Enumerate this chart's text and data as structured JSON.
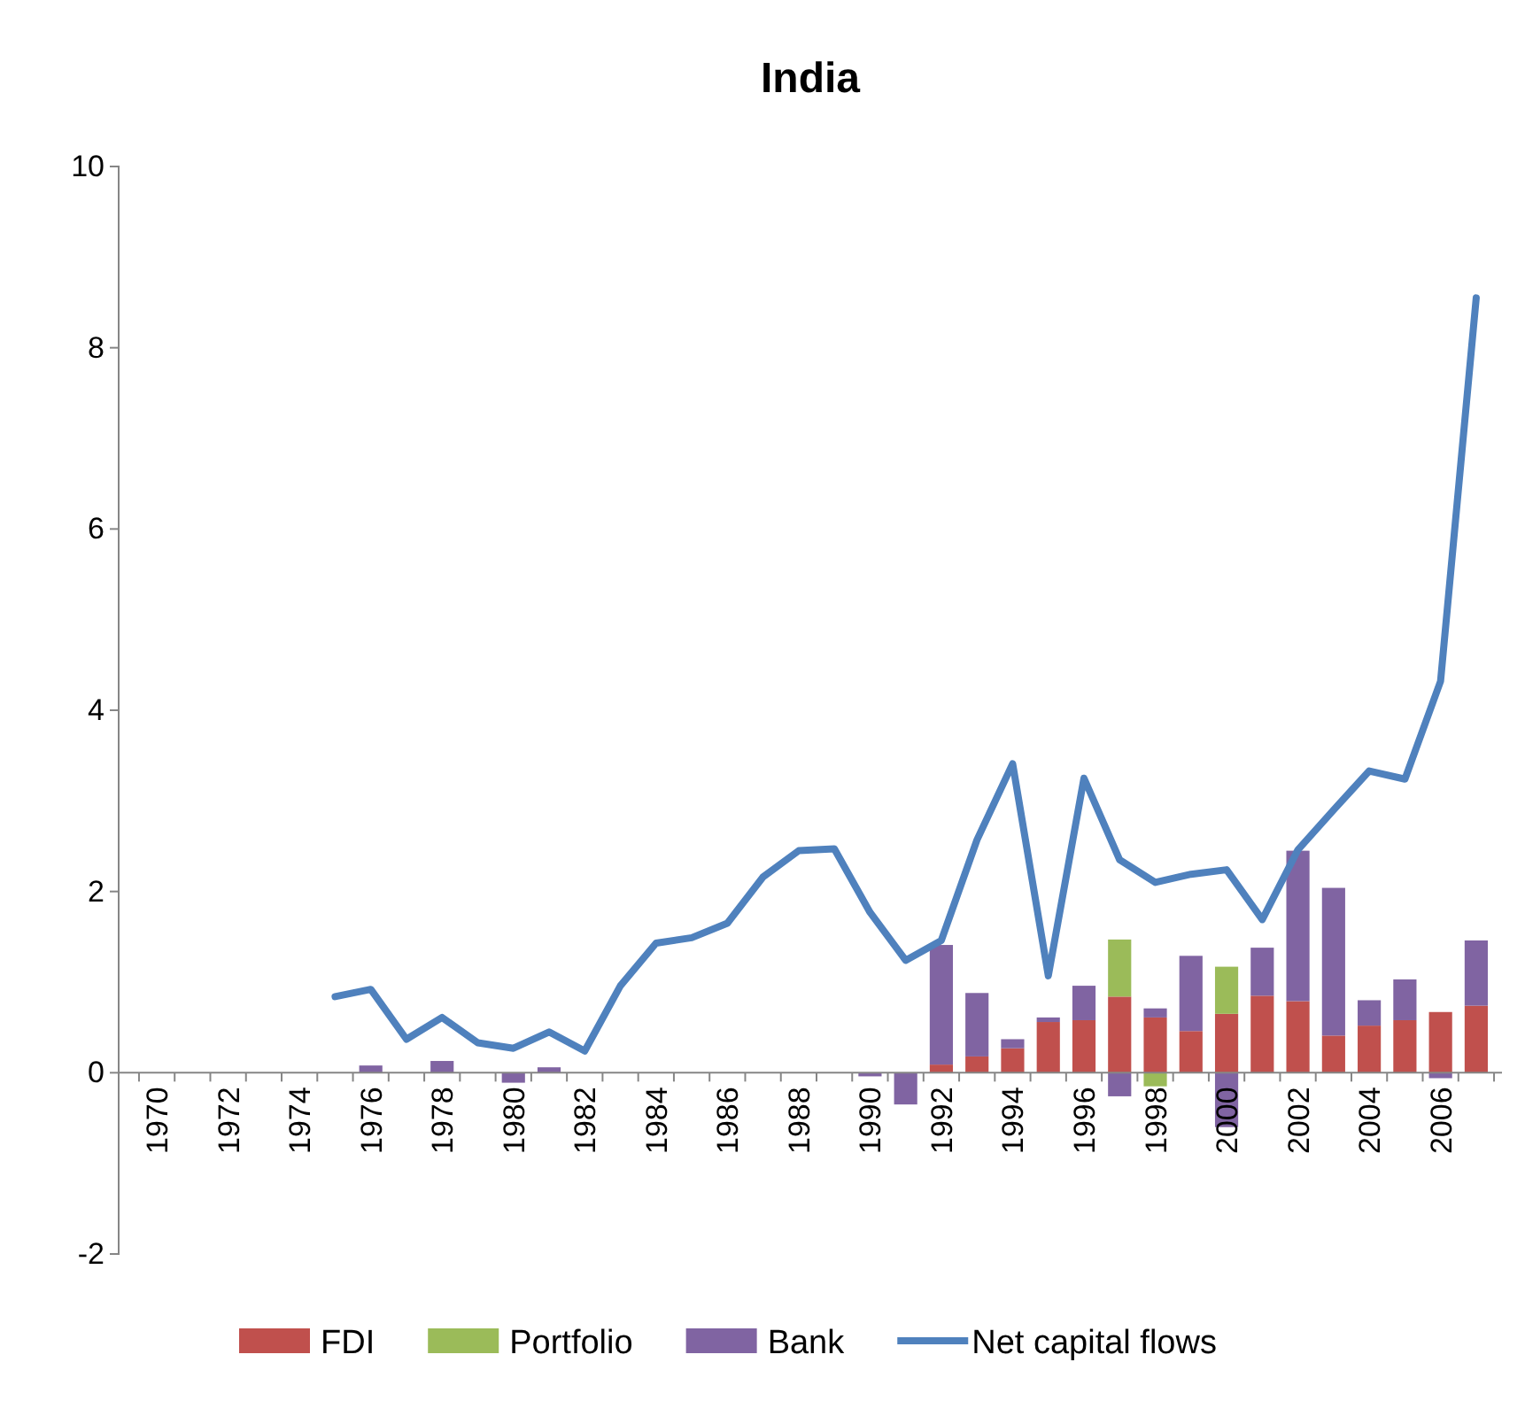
{
  "chart_data": {
    "type": "bar",
    "title": "India",
    "stacked": true,
    "categories": [
      "1970",
      null,
      "1972",
      null,
      "1974",
      null,
      "1976",
      null,
      "1978",
      null,
      "1980",
      null,
      "1982",
      null,
      "1984",
      null,
      "1986",
      null,
      "1988",
      null,
      "1990",
      null,
      "1992",
      null,
      "1994",
      null,
      "1996",
      null,
      "1998",
      null,
      "2000",
      null,
      "2002",
      null,
      "2004",
      null,
      "2006",
      null
    ],
    "ylim": [
      -2,
      10
    ],
    "yticks": [
      -2,
      0,
      2,
      4,
      6,
      8,
      10
    ],
    "grid": false,
    "legend": "bottom",
    "series": [
      {
        "name": "FDI",
        "color": "#c0504d",
        "values": [
          null,
          null,
          null,
          null,
          null,
          null,
          null,
          null,
          null,
          null,
          null,
          null,
          null,
          null,
          null,
          null,
          null,
          null,
          null,
          null,
          null,
          null,
          0.09,
          0.18,
          0.27,
          0.56,
          0.58,
          0.84,
          0.61,
          0.46,
          0.65,
          0.85,
          0.79,
          0.41,
          0.52,
          0.58,
          0.67,
          0.74
        ]
      },
      {
        "name": "Portfolio",
        "color": "#9bbb59",
        "values": [
          null,
          null,
          null,
          null,
          null,
          null,
          null,
          null,
          null,
          null,
          null,
          null,
          null,
          null,
          null,
          null,
          null,
          null,
          null,
          null,
          null,
          null,
          null,
          null,
          null,
          null,
          null,
          0.63,
          -0.15,
          null,
          0.52,
          null,
          null,
          null,
          null,
          null,
          null,
          null
        ]
      },
      {
        "name": "Bank",
        "color": "#8064a2",
        "values": [
          null,
          null,
          null,
          null,
          null,
          null,
          0.08,
          null,
          0.13,
          null,
          -0.11,
          0.06,
          null,
          null,
          null,
          null,
          null,
          null,
          null,
          null,
          -0.04,
          -0.35,
          1.32,
          0.7,
          0.1,
          0.05,
          0.38,
          -0.26,
          0.1,
          0.83,
          -0.6,
          0.53,
          1.66,
          1.63,
          0.28,
          0.45,
          -0.06,
          0.72
        ]
      },
      {
        "name": "Net capital flows",
        "type": "line",
        "color": "#4f81bd",
        "values": [
          null,
          null,
          null,
          null,
          null,
          0.84,
          0.92,
          0.37,
          0.61,
          0.33,
          0.27,
          0.45,
          0.24,
          0.96,
          1.43,
          1.49,
          1.65,
          2.16,
          2.45,
          2.47,
          1.77,
          1.24,
          1.46,
          2.57,
          3.41,
          1.07,
          3.25,
          2.35,
          2.1,
          2.19,
          2.24,
          1.69,
          2.46,
          2.9,
          3.33,
          3.24,
          4.32,
          8.55
        ]
      }
    ]
  }
}
